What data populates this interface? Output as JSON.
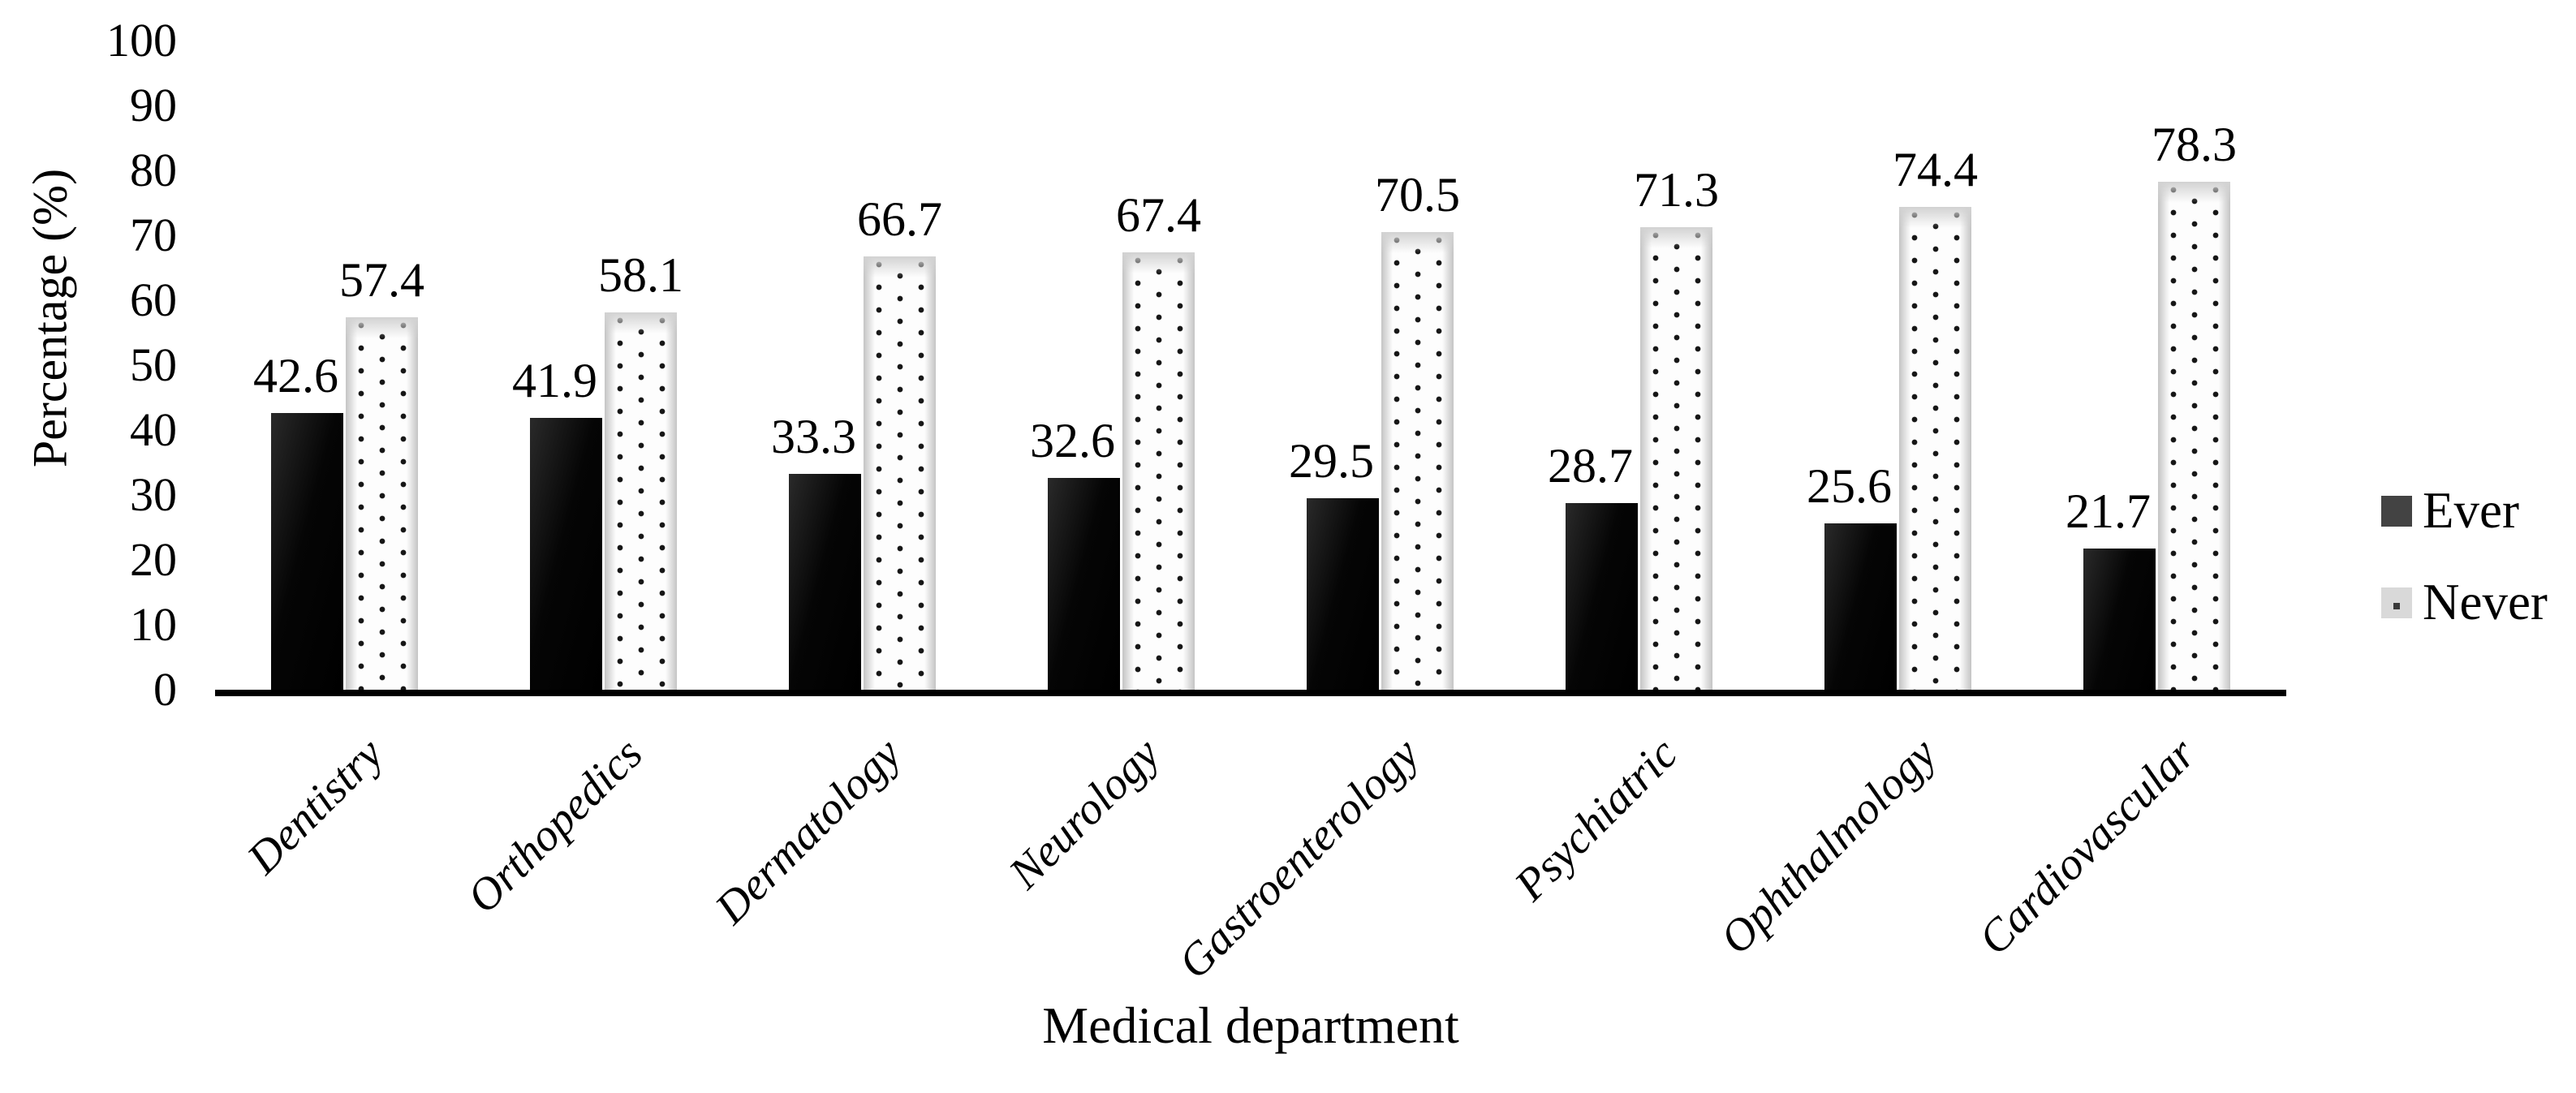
{
  "chart_data": {
    "type": "bar",
    "title": "",
    "categories": [
      "Dentistry",
      "Orthopedics",
      "Dermatology",
      "Neurology",
      "Gastroenterology",
      "Psychiatric",
      "Ophthalmology",
      "Cardiovascular"
    ],
    "series": [
      {
        "name": "Ever",
        "values": [
          42.6,
          41.9,
          33.3,
          32.6,
          29.5,
          28.7,
          25.6,
          21.7
        ]
      },
      {
        "name": "Never",
        "values": [
          57.4,
          58.1,
          66.7,
          67.4,
          70.5,
          71.3,
          74.4,
          78.3
        ]
      }
    ],
    "xlabel": "Medical department",
    "ylabel": "Percentage (%)",
    "ylim": [
      0,
      100
    ],
    "yticks": [
      0,
      10,
      20,
      30,
      40,
      50,
      60,
      70,
      80,
      90,
      100
    ],
    "grid": false,
    "legend_position": "right",
    "value_labels": true,
    "value_label_format": "one-decimal"
  },
  "legend": {
    "items": [
      {
        "label": "Ever",
        "swatch": "dark-solid-square"
      },
      {
        "label": "Never",
        "swatch": "light-dotted-square"
      }
    ]
  },
  "axes": {
    "ylabel": "Percentage (%)",
    "xlabel": "Medical department"
  },
  "colors": {
    "ever_bar": "#050505",
    "never_dot": "#161616",
    "never_edge": "#c4c4c4",
    "legend_ever": "#434343",
    "legend_never": "#d9d9d9",
    "axis_line": "#000000",
    "text": "#000000"
  }
}
